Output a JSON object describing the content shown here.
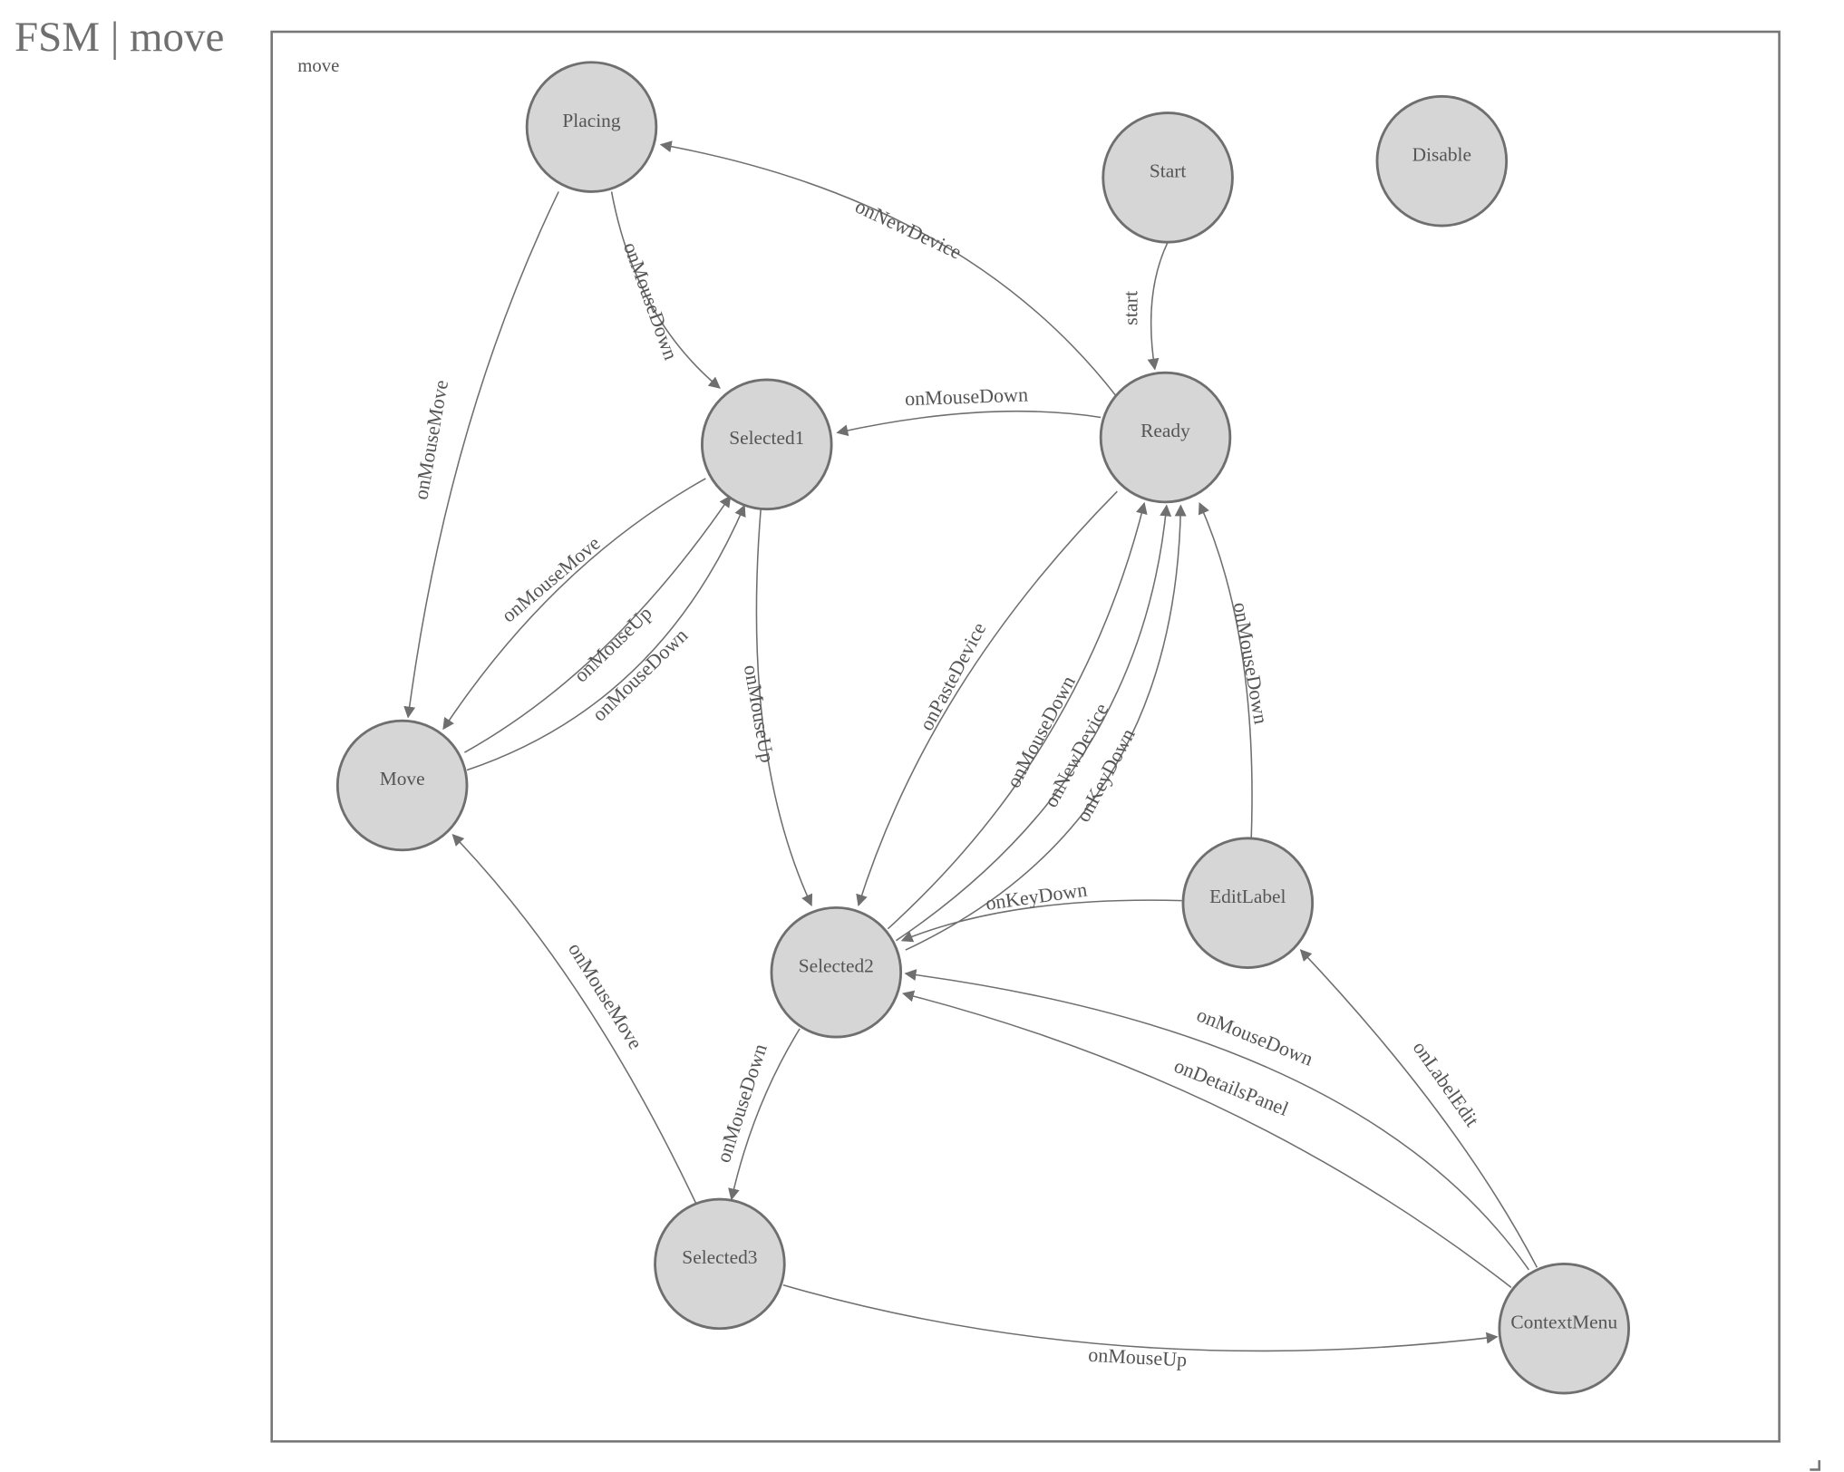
{
  "title": "FSM | move",
  "diagram": {
    "group_label": "move",
    "colors": {
      "node_fill": "#d6d6d6",
      "stroke": "#6f6f6f",
      "text": "#555555"
    },
    "nodes": [
      "Placing",
      "Start",
      "Disable",
      "Selected1",
      "Ready",
      "Move",
      "EditLabel",
      "Selected2",
      "Selected3",
      "ContextMenu"
    ],
    "edges": [
      {
        "from": "Placing",
        "to": "Move",
        "label": "onMouseMove"
      },
      {
        "from": "Placing",
        "to": "Selected1",
        "label": "onMouseDown"
      },
      {
        "from": "Ready",
        "to": "Placing",
        "label": "onNewDevice"
      },
      {
        "from": "Start",
        "to": "Ready",
        "label": "start"
      },
      {
        "from": "Ready",
        "to": "Selected1",
        "label": "onMouseDown"
      },
      {
        "from": "Selected1",
        "to": "Move",
        "label": "onMouseMove"
      },
      {
        "from": "Move",
        "to": "Selected1",
        "label": "onMouseUp"
      },
      {
        "from": "Move",
        "to": "Selected1",
        "label": "onMouseDown"
      },
      {
        "from": "Selected1",
        "to": "Selected2",
        "label": "onMouseUp"
      },
      {
        "from": "Ready",
        "to": "Selected2",
        "label": "onPasteDevice"
      },
      {
        "from": "Selected2",
        "to": "Ready",
        "label": "onMouseDown"
      },
      {
        "from": "Selected2",
        "to": "Ready",
        "label": "onNewDevice"
      },
      {
        "from": "Selected2",
        "to": "Ready",
        "label": "onKeyDown"
      },
      {
        "from": "EditLabel",
        "to": "Selected2",
        "label": "onKeyDown"
      },
      {
        "from": "EditLabel",
        "to": "Ready",
        "label": "onMouseDown"
      },
      {
        "from": "ContextMenu",
        "to": "Selected2",
        "label": "onMouseDown"
      },
      {
        "from": "ContextMenu",
        "to": "Selected2",
        "label": "onDetailsPanel"
      },
      {
        "from": "ContextMenu",
        "to": "EditLabel",
        "label": "onLabelEdit"
      },
      {
        "from": "Selected2",
        "to": "Selected3",
        "label": "onMouseDown"
      },
      {
        "from": "Selected3",
        "to": "Move",
        "label": "onMouseMove"
      },
      {
        "from": "Selected3",
        "to": "ContextMenu",
        "label": "onMouseUp"
      }
    ]
  }
}
